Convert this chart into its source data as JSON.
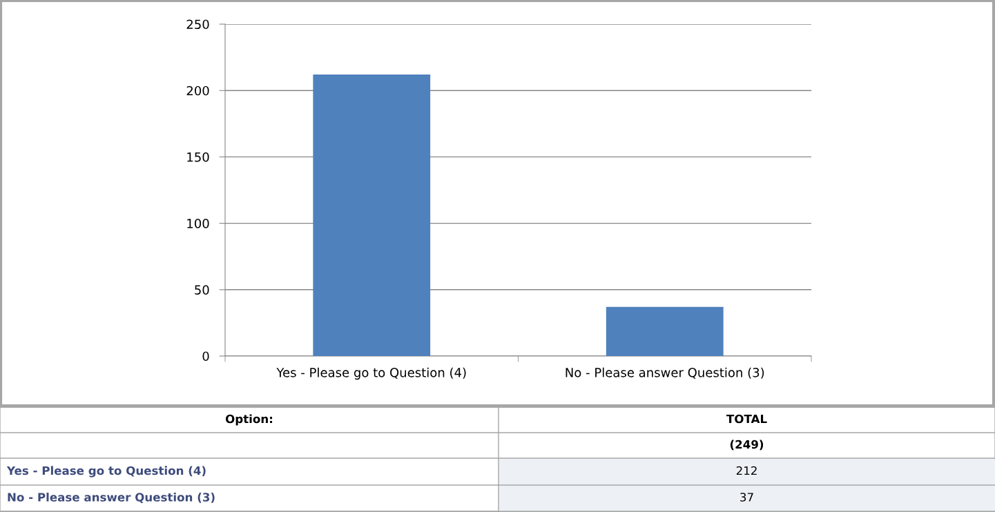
{
  "chart_data": {
    "type": "bar",
    "categories": [
      "Yes - Please go to Question (4)",
      "No - Please answer Question (3)"
    ],
    "values": [
      212,
      37
    ],
    "color": "#4f81bd",
    "ylim": [
      0,
      250
    ],
    "yticks": [
      0,
      50,
      100,
      150,
      200,
      250
    ],
    "grid": "y",
    "legend": false,
    "annotations": [
      "Option:",
      "TOTAL",
      "(249)",
      "212",
      "37"
    ]
  }
}
